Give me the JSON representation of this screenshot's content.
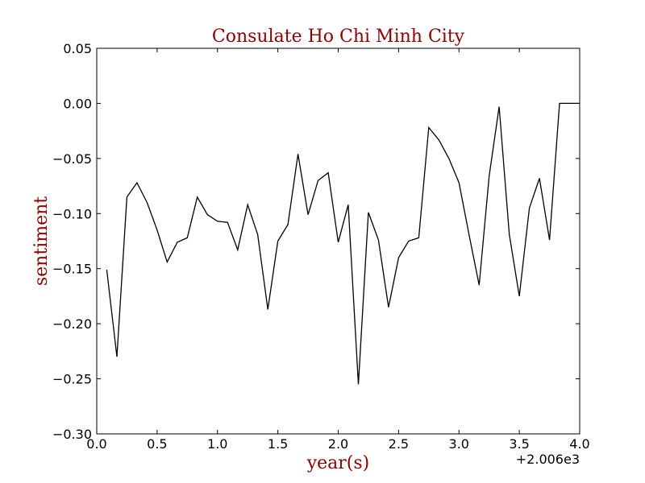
{
  "chart_data": {
    "type": "line",
    "title": "Consulate Ho Chi Minh City",
    "xlabel": "year(s)",
    "ylabel": "sentiment",
    "x_offset_label": "+2.006e3",
    "xlim": [
      0.0,
      4.0
    ],
    "ylim": [
      -0.3,
      0.05
    ],
    "xticks": [
      "0.0",
      "0.5",
      "1.0",
      "1.5",
      "2.0",
      "2.5",
      "3.0",
      "3.5",
      "4.0"
    ],
    "yticks": [
      "0.05",
      "0.00",
      "−0.05",
      "−0.10",
      "−0.15",
      "−0.20",
      "−0.25",
      "−0.30"
    ],
    "grid": false,
    "line_color": "#000000",
    "title_color": "#8b0000",
    "series": [
      {
        "x": [
          0.083,
          0.167,
          0.25,
          0.333,
          0.417,
          0.5,
          0.583,
          0.667,
          0.75,
          0.833,
          0.917,
          1.0,
          1.083,
          1.167,
          1.25,
          1.333,
          1.417,
          1.5,
          1.583,
          1.667,
          1.75,
          1.833,
          1.917,
          2.0,
          2.083,
          2.167,
          2.25,
          2.333,
          2.417,
          2.5,
          2.583,
          2.667,
          2.75,
          2.833,
          2.917,
          3.0,
          3.083,
          3.167,
          3.25,
          3.333,
          3.417,
          3.5,
          3.583,
          3.667,
          3.75,
          3.833,
          3.917,
          4.0
        ],
        "y": [
          -0.151,
          -0.23,
          -0.085,
          -0.072,
          -0.09,
          -0.115,
          -0.144,
          -0.126,
          -0.122,
          -0.085,
          -0.101,
          -0.107,
          -0.108,
          -0.133,
          -0.092,
          -0.119,
          -0.187,
          -0.125,
          -0.11,
          -0.046,
          -0.101,
          -0.07,
          -0.063,
          -0.126,
          -0.092,
          -0.255,
          -0.099,
          -0.124,
          -0.185,
          -0.14,
          -0.125,
          -0.122,
          -0.022,
          -0.033,
          -0.05,
          -0.072,
          -0.119,
          -0.165,
          -0.066,
          -0.003,
          -0.119,
          -0.175,
          -0.095,
          -0.068,
          -0.124,
          0.0,
          0.0,
          0.0
        ]
      }
    ]
  }
}
